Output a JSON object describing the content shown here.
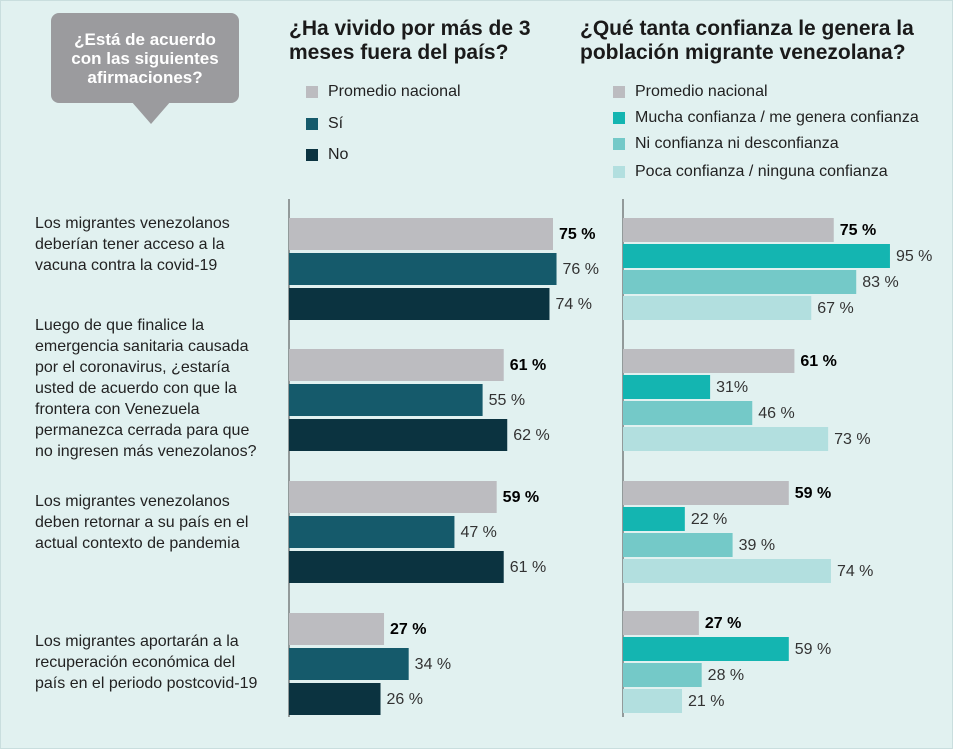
{
  "callout": "¿Está de acuerdo con las siguientes afirmaciones?",
  "chart_data": [
    {
      "type": "hbar",
      "title": "¿Ha vivido por más de 3 meses fuera del país?",
      "categories": [
        "Los migrantes venezolanos deberían tener acceso a la vacuna contra la covid-19",
        "Luego de que finalice la emergencia sanitaria causada por el coronavirus, ¿estaría usted de acuerdo con que la frontera con Venezuela permanezca cerrada para que no ingresen más venezolanos?",
        "Los migrantes venezolanos deben retornar a su país en el actual contexto de pandemia",
        "Los migrantes aportarán a la recuperación económica del país en el periodo postcovid-19"
      ],
      "xlim": [
        0,
        100
      ],
      "series": [
        {
          "name": "Promedio nacional",
          "color": "#bcbcc0",
          "values": [
            75,
            61,
            59,
            27
          ],
          "value_labels": [
            "75 %",
            "61 %",
            "59 %",
            "27 %"
          ]
        },
        {
          "name": "Sí",
          "color": "#155a6b",
          "values": [
            76,
            55,
            47,
            34
          ],
          "value_labels": [
            "76 %",
            "55 %",
            "47 %",
            "34 %"
          ]
        },
        {
          "name": "No",
          "color": "#0b3340",
          "values": [
            74,
            62,
            61,
            26
          ],
          "value_labels": [
            "74 %",
            "62 %",
            "61 %",
            "26 %"
          ]
        }
      ]
    },
    {
      "type": "hbar",
      "title": "¿Qué tanta confianza le genera la población migrante venezolana?",
      "xlim": [
        0,
        100
      ],
      "series": [
        {
          "name": "Promedio nacional",
          "color": "#bcbcc0",
          "values": [
            75,
            61,
            59,
            27
          ],
          "value_labels": [
            "75 %",
            "61 %",
            "59 %",
            "27 %"
          ]
        },
        {
          "name": "Mucha confianza / me genera confianza",
          "color": "#14b5b1",
          "values": [
            95,
            31,
            22,
            59
          ],
          "value_labels": [
            "95 %",
            "31%",
            "22 %",
            "59 %"
          ]
        },
        {
          "name": "Ni confianza ni desconfianza",
          "color": "#74c9c8",
          "values": [
            83,
            46,
            39,
            28
          ],
          "value_labels": [
            "83 %",
            "46 %",
            "39 %",
            "28 %"
          ]
        },
        {
          "name": "Poca confianza / ninguna confianza",
          "color": "#b2dfdf",
          "values": [
            67,
            73,
            74,
            21
          ],
          "value_labels": [
            "67 %",
            "73 %",
            "74 %",
            "21 %"
          ]
        }
      ]
    }
  ]
}
